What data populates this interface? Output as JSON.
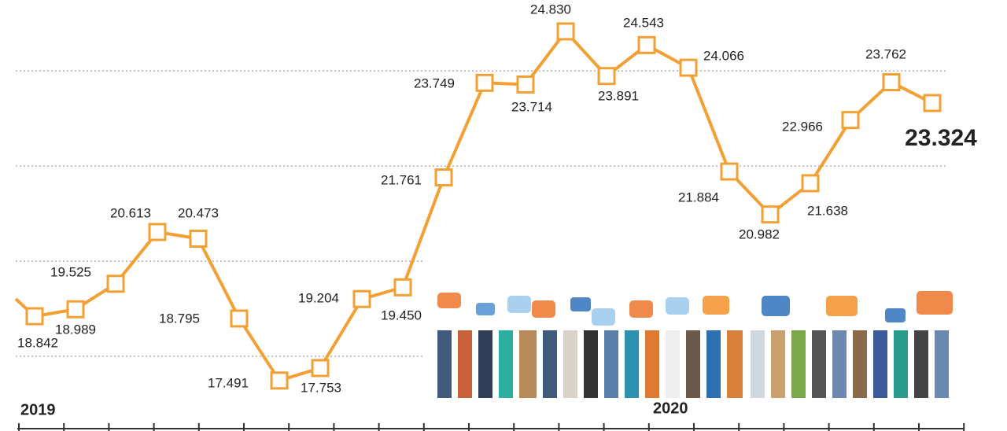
{
  "chart_data": {
    "type": "line",
    "categories": [
      null,
      null,
      null,
      null,
      null,
      null,
      null,
      null,
      null,
      null,
      null,
      null,
      null,
      null,
      null,
      null,
      null,
      null,
      null,
      null,
      null,
      null,
      null
    ],
    "values": [
      18.842,
      18.989,
      19.525,
      20.613,
      20.473,
      18.795,
      17.491,
      17.753,
      19.204,
      19.45,
      21.761,
      23.749,
      23.714,
      24.83,
      23.891,
      24.543,
      24.066,
      21.884,
      20.982,
      21.638,
      22.966,
      23.762,
      23.324
    ],
    "value_labels": [
      "18.842",
      "18.989",
      "19.525",
      "20.613",
      "20.473",
      "18.795",
      "17.491",
      "17.753",
      "19.204",
      "19.450",
      "21.761",
      "23.749",
      "23.714",
      "24.830",
      "23.891",
      "24.543",
      "24.066",
      "21.884",
      "20.982",
      "21.638",
      "22.966",
      "23.762",
      "23.324"
    ],
    "color": "#f2a033",
    "ylim": [
      16.43,
      25.49
    ],
    "yticks": [
      18,
      20,
      22,
      24
    ],
    "grid": true,
    "annotations": [
      "2019",
      "2020"
    ]
  }
}
